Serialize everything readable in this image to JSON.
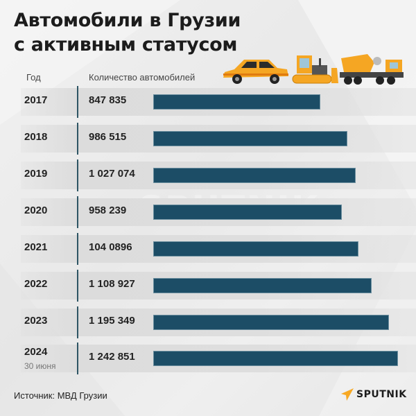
{
  "title_line1": "Автомобили в Грузии",
  "title_line2": "с активным статусом",
  "headers": {
    "year": "Год",
    "count": "Количество автомобилей"
  },
  "rows": [
    {
      "year": "2017",
      "sub": "",
      "label": "847 835"
    },
    {
      "year": "2018",
      "sub": "",
      "label": "986 515"
    },
    {
      "year": "2019",
      "sub": "",
      "label": "1 027 074"
    },
    {
      "year": "2020",
      "sub": "",
      "label": "958 239"
    },
    {
      "year": "2021",
      "sub": "",
      "label": "104 0896"
    },
    {
      "year": "2022",
      "sub": "",
      "label": "1 108 927"
    },
    {
      "year": "2023",
      "sub": "",
      "label": "1 195 349"
    },
    {
      "year": "2024",
      "sub": "30 июня",
      "label": "1 242 851"
    }
  ],
  "source": "Источник: МВД Грузии",
  "logo": "SPUTNIK",
  "watermark": "SPUTNIK",
  "colors": {
    "bar": "#1c4d66",
    "divider": "#2e5564",
    "accent": "#f7a823"
  },
  "chart_data": {
    "type": "bar",
    "orientation": "horizontal",
    "title": "Автомобили в Грузии с активным статусом",
    "xlabel": "Количество автомобилей",
    "ylabel": "Год",
    "categories": [
      "2017",
      "2018",
      "2019",
      "2020",
      "2021",
      "2022",
      "2023",
      "2024 (30 июня)"
    ],
    "values": [
      847835,
      986515,
      1027074,
      958239,
      1040896,
      1108927,
      1195349,
      1242851
    ],
    "source": "МВД Грузии",
    "grid": false,
    "legend": null
  }
}
